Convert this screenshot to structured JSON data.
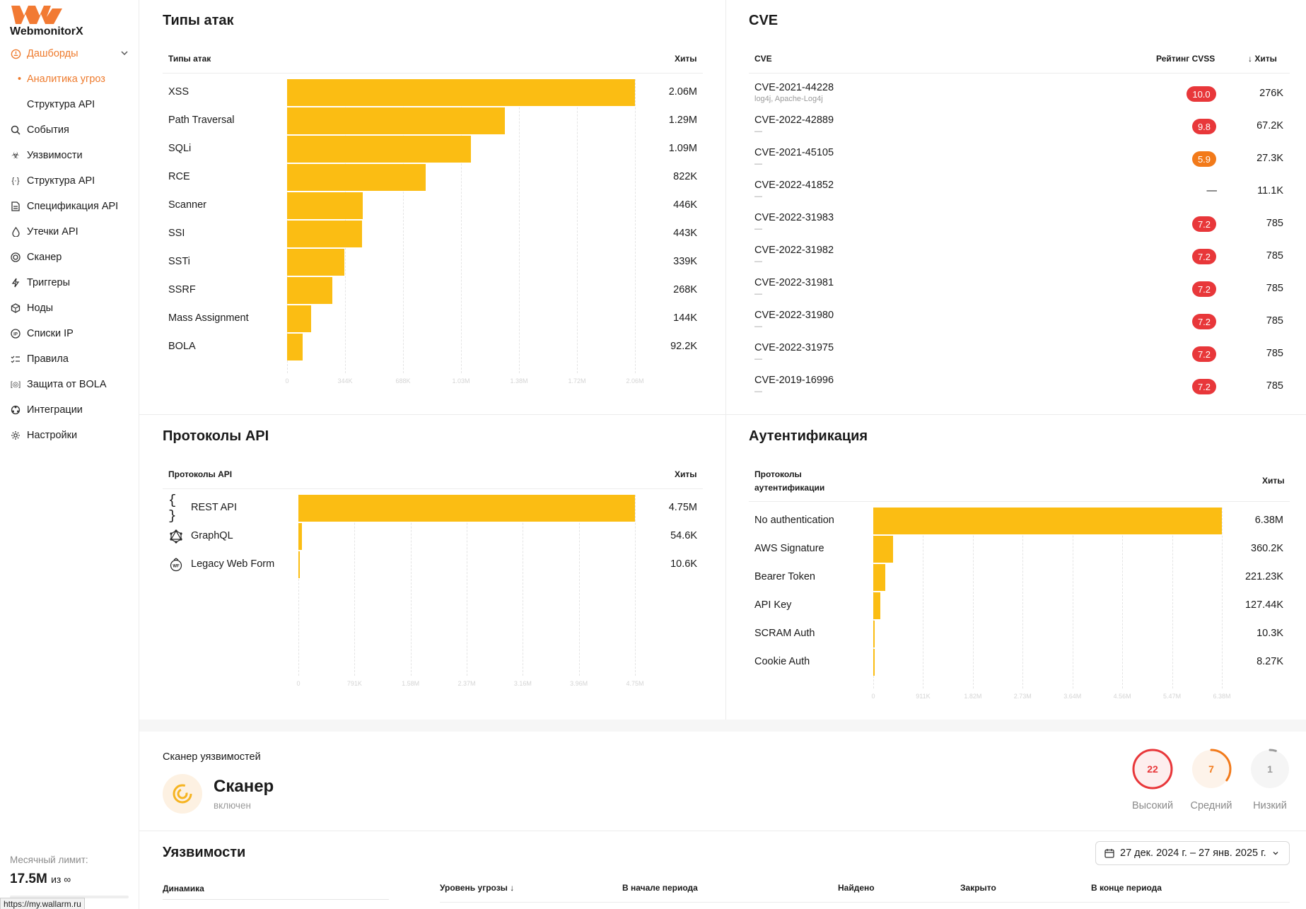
{
  "sidebar": {
    "logo_text": "WebmonitorX",
    "items": [
      {
        "label": "Дашборды",
        "icon": "dashboard-icon"
      },
      {
        "label": "Аналитика угроз"
      },
      {
        "label": "Структура API"
      },
      {
        "label": "События",
        "icon": "search-icon"
      },
      {
        "label": "Уязвимости",
        "icon": "biohazard-icon"
      },
      {
        "label": "Структура API",
        "icon": "api-structure-icon"
      },
      {
        "label": "Спецификация API",
        "icon": "document-icon"
      },
      {
        "label": "Утечки API",
        "icon": "drop-icon"
      },
      {
        "label": "Сканер",
        "icon": "scanner-icon"
      },
      {
        "label": "Триггеры",
        "icon": "lightning-icon"
      },
      {
        "label": "Ноды",
        "icon": "node-icon"
      },
      {
        "label": "Списки IP",
        "icon": "ip-icon"
      },
      {
        "label": "Правила",
        "icon": "rules-icon"
      },
      {
        "label": "Защита от BOLA",
        "icon": "bola-icon"
      },
      {
        "label": "Интеграции",
        "icon": "integrations-icon"
      },
      {
        "label": "Настройки",
        "icon": "gear-icon"
      }
    ],
    "limit_label": "Месячный лимит:",
    "limit_value": "17.5M",
    "limit_of": "из ∞",
    "url_tooltip": "https://my.wallarm.ru"
  },
  "attack_types": {
    "title": "Типы атак",
    "col_name": "Типы атак",
    "col_hits": "Хиты",
    "ticks": [
      "0",
      "344K",
      "688K",
      "1.03M",
      "1.38M",
      "1.72M",
      "2.06M"
    ],
    "rows": [
      {
        "label": "XSS",
        "display": "2.06M"
      },
      {
        "label": "Path Traversal",
        "display": "1.29M"
      },
      {
        "label": "SQLi",
        "display": "1.09M"
      },
      {
        "label": "RCE",
        "display": "822K"
      },
      {
        "label": "Scanner",
        "display": "446K"
      },
      {
        "label": "SSI",
        "display": "443K"
      },
      {
        "label": "SSTi",
        "display": "339K"
      },
      {
        "label": "SSRF",
        "display": "268K"
      },
      {
        "label": "Mass Assignment",
        "display": "144K"
      },
      {
        "label": "BOLA",
        "display": "92.2K"
      }
    ]
  },
  "cve": {
    "title": "CVE",
    "col_name": "CVE",
    "col_score": "Рейтинг CVSS",
    "col_hits": "Хиты",
    "rows": [
      {
        "name": "CVE-2021-44228",
        "sub": "log4j, Apache-Log4j",
        "score": "10.0",
        "hits": "276K",
        "color": "#e8373a"
      },
      {
        "name": "CVE-2022-42889",
        "sub": "—",
        "score": "9.8",
        "hits": "67.2K",
        "color": "#e8373a"
      },
      {
        "name": "CVE-2021-45105",
        "sub": "—",
        "score": "5.9",
        "hits": "27.3K",
        "color": "#f27a1a"
      },
      {
        "name": "CVE-2022-41852",
        "sub": "—",
        "score": "—",
        "hits": "11.1K",
        "color": ""
      },
      {
        "name": "CVE-2022-31983",
        "sub": "—",
        "score": "7.2",
        "hits": "785",
        "color": "#e8373a"
      },
      {
        "name": "CVE-2022-31982",
        "sub": "—",
        "score": "7.2",
        "hits": "785",
        "color": "#e8373a"
      },
      {
        "name": "CVE-2022-31981",
        "sub": "—",
        "score": "7.2",
        "hits": "785",
        "color": "#e8373a"
      },
      {
        "name": "CVE-2022-31980",
        "sub": "—",
        "score": "7.2",
        "hits": "785",
        "color": "#e8373a"
      },
      {
        "name": "CVE-2022-31975",
        "sub": "—",
        "score": "7.2",
        "hits": "785",
        "color": "#e8373a"
      },
      {
        "name": "CVE-2019-16996",
        "sub": "—",
        "score": "7.2",
        "hits": "785",
        "color": "#e8373a"
      }
    ]
  },
  "protocols": {
    "title": "Протоколы API",
    "col_name": "Протоколы API",
    "col_hits": "Хиты",
    "ticks": [
      "0",
      "791K",
      "1.58M",
      "2.37M",
      "3.16M",
      "3.96M",
      "4.75M"
    ],
    "rows": [
      {
        "label": "REST API",
        "display": "4.75M",
        "icon": "braces-icon"
      },
      {
        "label": "GraphQL",
        "display": "54.6K",
        "icon": "graphql-icon"
      },
      {
        "label": "Legacy Web Form",
        "display": "10.6K",
        "icon": "webform-icon"
      }
    ]
  },
  "auth": {
    "title": "Аутентификация",
    "col_name_line1": "Протоколы",
    "col_name_line2": "аутентификации",
    "col_hits": "Хиты",
    "ticks": [
      "0",
      "911K",
      "1.82M",
      "2.73M",
      "3.64M",
      "4.56M",
      "5.47M",
      "6.38M"
    ],
    "rows": [
      {
        "label": "No authentication",
        "display": "6.38M"
      },
      {
        "label": "AWS Signature",
        "display": "360.2K"
      },
      {
        "label": "Bearer Token",
        "display": "221.23K"
      },
      {
        "label": "API Key",
        "display": "127.44K"
      },
      {
        "label": "SCRAM Auth",
        "display": "10.3K"
      },
      {
        "label": "Cookie Auth",
        "display": "8.27K"
      }
    ]
  },
  "scanner": {
    "section_label": "Сканер уязвимостей",
    "name": "Сканер",
    "status": "включен",
    "levels": [
      {
        "label": "Высокий",
        "count": "22",
        "color": "#e8373a"
      },
      {
        "label": "Средний",
        "count": "7",
        "color": "#f27a1a"
      },
      {
        "label": "Низкий",
        "count": "1",
        "color": "#9a9a9a"
      }
    ]
  },
  "vulns": {
    "title": "Уязвимости",
    "date_range": "27 дек. 2024 г. – 27 янв. 2025 г.",
    "col_dynamics": "Динамика",
    "col_level": "Уровень угрозы",
    "col_start": "В начале периода",
    "col_found": "Найдено",
    "col_closed": "Закрыто",
    "col_end": "В конце периода"
  },
  "chart_data": [
    {
      "type": "bar",
      "title": "Типы атак",
      "categories": [
        "XSS",
        "Path Traversal",
        "SQLi",
        "RCE",
        "Scanner",
        "SSI",
        "SSTi",
        "SSRF",
        "Mass Assignment",
        "BOLA"
      ],
      "values": [
        2060000,
        1290000,
        1090000,
        822000,
        446000,
        443000,
        339000,
        268000,
        144000,
        92200
      ],
      "xlim": [
        0,
        2060000
      ]
    },
    {
      "type": "bar",
      "title": "Протоколы API",
      "categories": [
        "REST API",
        "GraphQL",
        "Legacy Web Form"
      ],
      "values": [
        4750000,
        54600,
        10600
      ],
      "xlim": [
        0,
        4750000
      ]
    },
    {
      "type": "bar",
      "title": "Аутентификация",
      "categories": [
        "No authentication",
        "AWS Signature",
        "Bearer Token",
        "API Key",
        "SCRAM Auth",
        "Cookie Auth"
      ],
      "values": [
        6380000,
        360200,
        221230,
        127440,
        10300,
        8270
      ],
      "xlim": [
        0,
        6380000
      ]
    }
  ]
}
